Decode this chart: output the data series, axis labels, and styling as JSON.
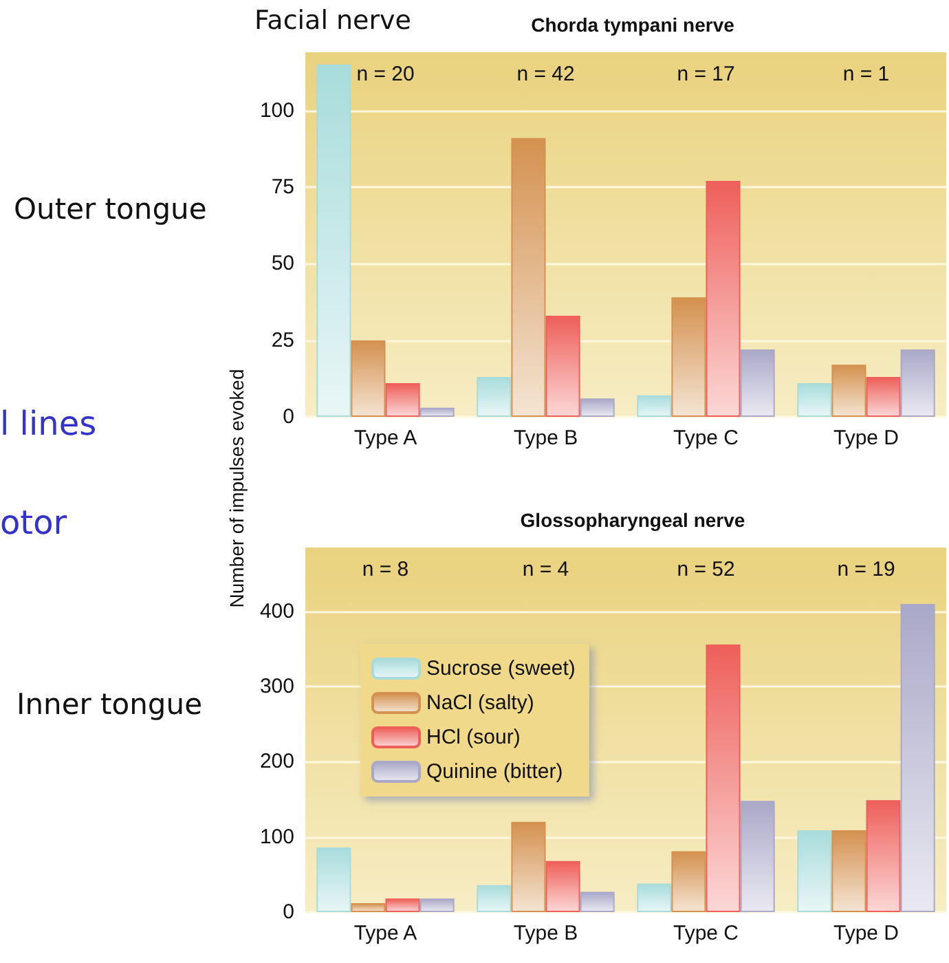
{
  "chart_data": [
    {
      "type": "bar",
      "title": "Chorda tympani nerve",
      "ylabel": "Number of impulses evoked",
      "categories": [
        "Type A",
        "Type B",
        "Type C",
        "Type D"
      ],
      "series": [
        {
          "color": "#a8dcdc",
          "values": [
            115,
            13,
            7,
            11
          ]
        },
        {
          "color": "#d4914f",
          "values": [
            25,
            91,
            39,
            17
          ]
        },
        {
          "color": "#ee5f5a",
          "values": [
            11,
            33,
            77,
            13
          ]
        },
        {
          "color": "#aaa8c8",
          "values": [
            3,
            6,
            22,
            22
          ]
        }
      ],
      "ylim": [
        0,
        119
      ],
      "yticks": [
        0,
        25,
        50,
        75,
        100
      ],
      "grid": "y",
      "legend": false,
      "annotations": [
        "n = 20",
        "n = 42",
        "n = 17",
        "n = 1",
        "Facial nerve",
        "Outer tongue",
        "l lines",
        "otor"
      ]
    },
    {
      "type": "bar",
      "title": "Glossopharyngeal nerve",
      "categories": [
        "Type A",
        "Type B",
        "Type C",
        "Type D"
      ],
      "series": [
        {
          "name": "Sucrose (sweet)",
          "color": "#a8dcdc",
          "values": [
            86,
            36,
            38,
            109
          ]
        },
        {
          "name": "NaCl (salty)",
          "color": "#d4914f",
          "values": [
            12,
            120,
            81,
            109
          ]
        },
        {
          "name": "HCl (sour)",
          "color": "#ee5f5a",
          "values": [
            18,
            68,
            356,
            149
          ]
        },
        {
          "name": "Quinine (bitter)",
          "color": "#aaa8c8",
          "values": [
            18,
            27,
            148,
            410
          ]
        }
      ],
      "ylim": [
        0,
        485
      ],
      "yticks": [
        0,
        100,
        200,
        300,
        400
      ],
      "grid": "y",
      "legend": "top left",
      "annotations": [
        "n = 8",
        "n = 4",
        "n = 52",
        "n = 19",
        "Inner tongue"
      ]
    }
  ]
}
